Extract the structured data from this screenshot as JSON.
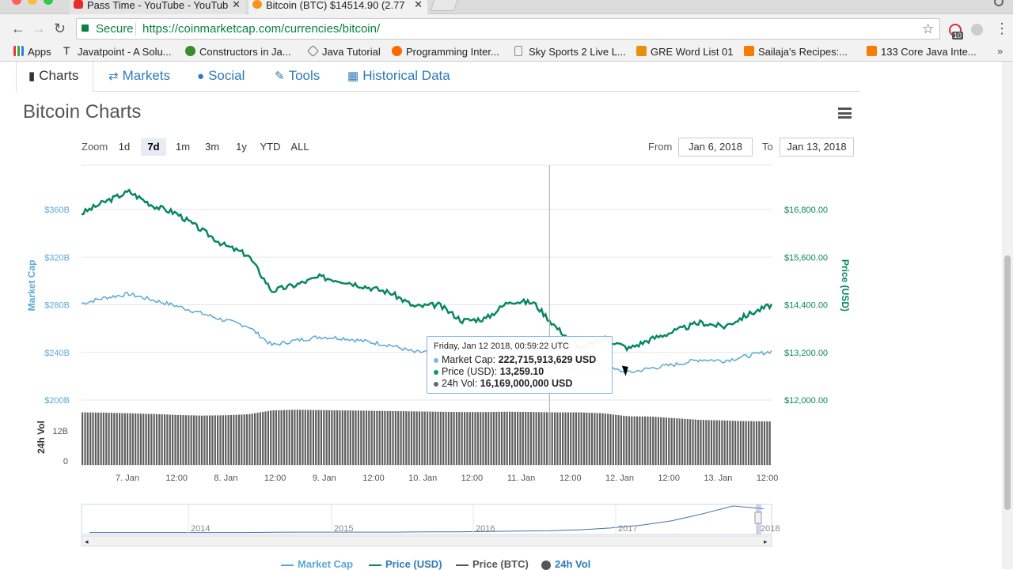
{
  "browser": {
    "tabs": [
      {
        "title": "Pass Time - YouTube - YouTub",
        "favicon_color": "#e52d27"
      },
      {
        "title": "Bitcoin (BTC) $14514.90 (2.77",
        "favicon_color": "#f7931a"
      }
    ],
    "secure_label": "Secure",
    "url": "https://coinmarketcap.com/currencies/bitcoin/",
    "extension_badge": "10",
    "bookmarks": [
      {
        "label": "Apps",
        "icon": "apps-grid-icon"
      },
      {
        "label": "Javatpoint - A Solu...",
        "icon": "javatpoint-icon"
      },
      {
        "label": "Constructors in Ja...",
        "icon": "b-green-icon"
      },
      {
        "label": "Java Tutorial",
        "icon": "diamond-icon"
      },
      {
        "label": "Programming Inter...",
        "icon": "orange-swirl-icon"
      },
      {
        "label": "Sky Sports 2 Live L...",
        "icon": "page-icon"
      },
      {
        "label": "GRE Word List 01",
        "icon": "orange-square-icon"
      },
      {
        "label": "Sailaja's Recipes:...",
        "icon": "blogger-icon"
      },
      {
        "label": "133 Core Java Inte...",
        "icon": "blogger-icon"
      }
    ]
  },
  "subnav": {
    "tabs": [
      {
        "label": "Charts",
        "icon": "bar-chart-icon",
        "active": true
      },
      {
        "label": "Markets",
        "icon": "exchange-arrows-icon",
        "active": false
      },
      {
        "label": "Social",
        "icon": "globe-icon",
        "active": false
      },
      {
        "label": "Tools",
        "icon": "wrench-icon",
        "active": false
      },
      {
        "label": "Historical Data",
        "icon": "calendar-icon",
        "active": false
      }
    ]
  },
  "chart_header": {
    "title": "Bitcoin Charts",
    "zoom_label": "Zoom",
    "zoom_options": [
      "1d",
      "7d",
      "1m",
      "3m",
      "1y",
      "YTD",
      "ALL"
    ],
    "zoom_selected": "7d",
    "from_label": "From",
    "from_value": "Jan 6, 2018",
    "to_label": "To",
    "to_value": "Jan 13, 2018"
  },
  "tooltip": {
    "date": "Friday, Jan 12 2018, 00:59:22 UTC",
    "rows": [
      {
        "label": "Market Cap:",
        "value": "222,715,913,629 USD",
        "color": "#7cb5ec"
      },
      {
        "label": "Price (USD):",
        "value": "13,259.10",
        "color": "#0f9d58"
      },
      {
        "label": "24h Vol:",
        "value": "16,169,000,000 USD",
        "color": "#666666"
      }
    ]
  },
  "colors": {
    "market_cap": "#5aa9d6",
    "price_usd": "#078760",
    "volume": "#555555",
    "grid": "#e6e6e6"
  },
  "chart_data": {
    "type": "line",
    "x_axis": {
      "tick_labels": [
        "7. Jan",
        "12:00",
        "8. Jan",
        "12:00",
        "9. Jan",
        "12:00",
        "10. Jan",
        "12:00",
        "11. Jan",
        "12:00",
        "12. Jan",
        "12:00",
        "13. Jan",
        "12:00"
      ]
    },
    "y_left": {
      "label": "Market Cap",
      "tick_labels": [
        "$360B",
        "$320B",
        "$280B",
        "$240B",
        "$200B"
      ],
      "ylim": [
        200,
        360
      ]
    },
    "y_right": {
      "label": "Price (USD)",
      "tick_labels": [
        "$16,800.00",
        "$15,600.00",
        "$14,400.00",
        "$13,200.00",
        "$12,000.00"
      ],
      "ylim": [
        12000,
        16800
      ]
    },
    "volume_axis": {
      "label": "24h Vol",
      "tick_labels": [
        "12B",
        "0"
      ]
    },
    "x_hours": [
      0,
      6,
      12,
      18,
      24,
      30,
      36,
      42,
      48,
      54,
      60,
      66,
      72,
      78,
      84,
      90,
      96,
      102,
      108,
      114,
      120,
      126,
      132,
      138,
      144,
      150,
      156,
      162,
      168,
      174
    ],
    "series": [
      {
        "name": "Price (USD)",
        "values": [
          16700,
          17000,
          17250,
          16900,
          16700,
          16300,
          15900,
          15650,
          14750,
          14900,
          15100,
          15000,
          14850,
          14700,
          14350,
          14400,
          14000,
          14050,
          14500,
          14450,
          13800,
          13300,
          13550,
          13300,
          13550,
          13750,
          13950,
          13850,
          14150,
          14400
        ]
      },
      {
        "name": "Market Cap",
        "values": [
          281,
          286,
          289,
          284,
          279,
          273,
          267,
          262,
          246,
          250,
          253,
          252,
          249,
          246,
          240,
          241,
          234,
          235,
          243,
          242,
          231,
          223,
          227,
          223,
          227,
          230,
          234,
          233,
          237,
          241
        ]
      },
      {
        "name": "24h Vol",
        "values": [
          16.2,
          16.1,
          15.9,
          15.7,
          15.4,
          15.2,
          15.3,
          15.6,
          16.8,
          17.0,
          16.9,
          16.8,
          16.7,
          16.6,
          16.5,
          16.4,
          16.3,
          16.3,
          16.4,
          16.3,
          16.2,
          16.2,
          15.9,
          15.0,
          14.9,
          14.4,
          13.9,
          13.7,
          13.5,
          13.4
        ]
      }
    ],
    "crosshair_hour": 118,
    "navigator": {
      "year_labels": [
        "2014",
        "2015",
        "2016",
        "2017",
        "2018"
      ],
      "values": [
        1,
        1,
        1,
        1,
        1,
        1,
        1.5,
        2,
        2,
        2,
        2,
        3,
        3,
        4,
        5,
        6,
        9,
        14,
        22,
        35,
        55,
        78,
        70
      ]
    },
    "legend": [
      {
        "name": "Market Cap",
        "color": "#5aa9d6",
        "kind": "line"
      },
      {
        "name": "Price (USD)",
        "color": "#078760",
        "kind": "line"
      },
      {
        "name": "Price (BTC)",
        "color": "#555555",
        "kind": "line"
      },
      {
        "name": "24h Vol",
        "color": "#555555",
        "kind": "dot"
      }
    ]
  }
}
